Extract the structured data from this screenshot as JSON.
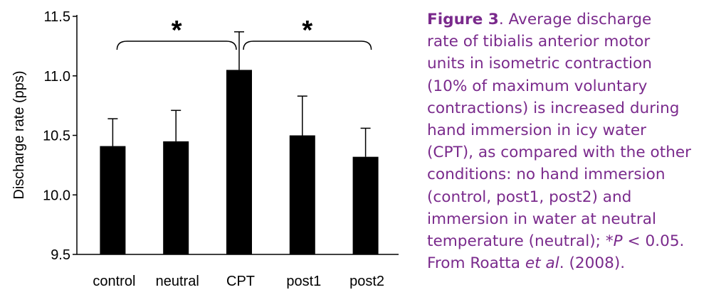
{
  "chart_data": {
    "type": "bar",
    "categories": [
      "control",
      "neutral",
      "CPT",
      "post1",
      "post2"
    ],
    "values": [
      10.41,
      10.45,
      11.05,
      10.5,
      10.32
    ],
    "error_upper": [
      10.64,
      10.71,
      11.37,
      10.83,
      10.56
    ],
    "ylabel": "Discharge rate (pps)",
    "xlabel": "",
    "ylim": [
      9.5,
      11.5
    ],
    "yticks": [
      "9.5",
      "10.0",
      "10.5",
      "11.0",
      "11.5"
    ],
    "grid": false,
    "significance": [
      {
        "from": "control",
        "to": "CPT",
        "label": "*"
      },
      {
        "from": "CPT",
        "to": "post2",
        "label": "*"
      }
    ],
    "colors": {
      "bar": "#000000",
      "axis": "#000000"
    }
  },
  "caption": {
    "color": "#7a2a8c",
    "figure_label": "Figure 3",
    "line1_rest": ". Average discharge",
    "line2": "rate of tibialis anterior motor",
    "line3": "units in isometric contraction",
    "line4": "(10% of maximum voluntary",
    "line5": "contractions) is increased during",
    "line6": "hand immersion in icy water",
    "line7": "(CPT), as compared with the other",
    "line8": "conditions: no hand immersion",
    "line9": "(control, post1, post2) and",
    "line10": "immersion in water at neutral",
    "line11_a": "temperature (neutral); ",
    "line11_star": "*",
    "line11_p": "P",
    "line11_b": " < 0.05.",
    "line12_a": "From Roatta ",
    "line12_etal": "et al",
    "line12_b": ". (2008)."
  }
}
